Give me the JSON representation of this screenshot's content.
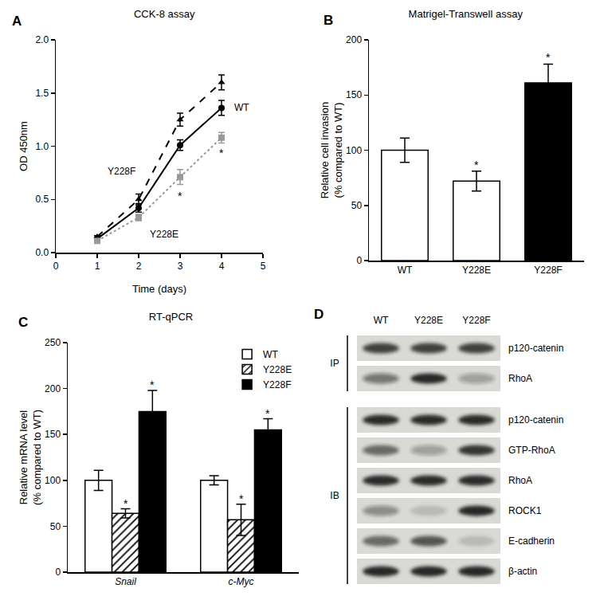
{
  "chart_data": [
    {
      "panel": "A",
      "type": "line",
      "title": "CCK-8 assay",
      "x_label": "Time (days)",
      "y_label": "OD 450nm",
      "x": [
        1,
        2,
        3,
        4
      ],
      "series": [
        {
          "name": "WT",
          "color": "#000000",
          "marker": "circle",
          "line_style": "solid",
          "values": [
            0.13,
            0.42,
            1.01,
            1.36
          ],
          "errors": [
            0.01,
            0.04,
            0.05,
            0.07
          ]
        },
        {
          "name": "Y228F",
          "color": "#000000",
          "marker": "triangle",
          "line_style": "dashed",
          "values": [
            0.15,
            0.5,
            1.25,
            1.6
          ],
          "errors": [
            0.01,
            0.05,
            0.06,
            0.07
          ]
        },
        {
          "name": "Y228E",
          "color": "#999999",
          "marker": "square",
          "line_style": "dotted",
          "values": [
            0.11,
            0.33,
            0.71,
            1.08
          ],
          "errors": [
            0.01,
            0.03,
            0.07,
            0.05
          ]
        }
      ],
      "xlim": [
        0,
        5
      ],
      "xticks": [
        0,
        1,
        2,
        3,
        4,
        5
      ],
      "ylim": [
        0,
        2
      ],
      "yticks": [
        {
          "value": 0,
          "label": "0.0"
        },
        0.5,
        {
          "value": 1,
          "label": "1.0"
        },
        1.5,
        {
          "value": 2,
          "label": "2.0"
        }
      ],
      "grid": false,
      "annotations": [
        {
          "text": "*",
          "x": 3,
          "y": 0.53
        },
        {
          "text": "*",
          "x": 4,
          "y": 0.94
        }
      ]
    },
    {
      "panel": "B",
      "type": "bar",
      "title": "Matrigel-Transwell assay",
      "y_label": "Relative cell invasion\n(% compared to WT)",
      "categories": [
        "WT",
        "Y228E",
        "Y228F"
      ],
      "values": [
        100,
        72,
        161
      ],
      "errors": [
        11,
        9,
        17
      ],
      "colors": [
        "#ffffff",
        "#ffffff",
        "#000000"
      ],
      "ylim": [
        0,
        200
      ],
      "yticks": [
        0,
        50,
        100,
        150,
        200
      ],
      "grid": false,
      "annotations": [
        {
          "text": "*",
          "category": "Y228E",
          "y": 87
        },
        {
          "text": "*",
          "category": "Y228F",
          "y": 184
        }
      ]
    },
    {
      "panel": "C",
      "type": "bar",
      "title": "RT-qPCR",
      "y_label": "Relative mRNA level\n(% compared to WT)",
      "categories": [
        "Snail",
        "c-Myc"
      ],
      "series": [
        {
          "name": "WT",
          "color": "#ffffff",
          "marker": "solid",
          "values": [
            100,
            100
          ],
          "errors": [
            11,
            5
          ]
        },
        {
          "name": "Y228E",
          "color": "#ffffff",
          "marker": "hatch",
          "values": [
            64,
            57
          ],
          "errors": [
            5,
            17
          ]
        },
        {
          "name": "Y228F",
          "color": "#000000",
          "marker": "solid",
          "values": [
            175,
            155
          ],
          "errors": [
            23,
            12
          ]
        }
      ],
      "legend": "upper right",
      "ylim": [
        0,
        250
      ],
      "yticks": [
        0,
        50,
        100,
        150,
        200,
        250
      ],
      "grid": false,
      "annotations": [
        {
          "text": "*",
          "category": "Snail",
          "series": "Y228E",
          "y": 75
        },
        {
          "text": "*",
          "category": "Snail",
          "series": "Y228F",
          "y": 204
        },
        {
          "text": "*",
          "category": "c-Myc",
          "series": "Y228E",
          "y": 80
        },
        {
          "text": "*",
          "category": "c-Myc",
          "series": "Y228F",
          "y": 173
        }
      ]
    }
  ],
  "blot": {
    "panel": "D",
    "lanes": [
      "WT",
      "Y228E",
      "Y228F"
    ],
    "groups": [
      {
        "label": "IP",
        "rows": [
          {
            "label": "p120-catenin",
            "band_intensity": [
              0.8,
              0.8,
              0.8
            ]
          },
          {
            "label": "RhoA",
            "band_intensity": [
              0.5,
              0.95,
              0.3
            ]
          }
        ]
      },
      {
        "label": "IB",
        "rows": [
          {
            "label": "p120-catenin",
            "band_intensity": [
              0.9,
              0.9,
              0.9
            ]
          },
          {
            "label": "GTP-RhoA",
            "band_intensity": [
              0.6,
              0.3,
              0.85
            ]
          },
          {
            "label": "RhoA",
            "band_intensity": [
              0.9,
              0.9,
              0.9
            ]
          },
          {
            "label": "ROCK1",
            "band_intensity": [
              0.4,
              0.15,
              0.95
            ]
          },
          {
            "label": "E-cadherin",
            "band_intensity": [
              0.6,
              0.7,
              0.15
            ]
          },
          {
            "label": "β-actin",
            "band_intensity": [
              0.95,
              0.95,
              0.95
            ]
          }
        ]
      }
    ]
  }
}
